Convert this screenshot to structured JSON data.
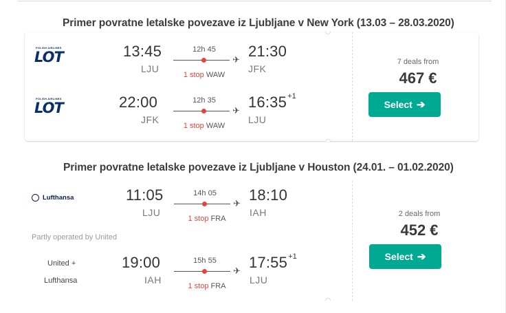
{
  "routes": [
    {
      "title": "Primer povratne letalske povezave iz Ljubljane v New York  (13.03 – 28.03.2020)",
      "deals": "7 deals from",
      "price": "467 €",
      "select_label": "Select",
      "legs": [
        {
          "airline_tag": "POLISH AIRLINES",
          "airline_logo": "LOT",
          "dep_time": "13:45",
          "dep_code": "LJU",
          "duration": "12h 45",
          "stop_count": "1 stop",
          "stop_airport": "WAW",
          "arr_time": "21:30",
          "arr_suffix": "",
          "arr_code": "JFK"
        },
        {
          "airline_tag": "POLISH AIRLINES",
          "airline_logo": "LOT",
          "dep_time": "22:00",
          "dep_code": "JFK",
          "duration": "12h 35",
          "stop_count": "1 stop",
          "stop_airport": "WAW",
          "arr_time": "16:35",
          "arr_suffix": "+1",
          "arr_code": "LJU"
        }
      ]
    },
    {
      "title": "Primer povratne letalske povezave iz Ljubljane v Houston (24.01. – 01.02.2020)",
      "deals": "2 deals from",
      "price": "452 €",
      "select_label": "Select",
      "operated_note": "Partly operated by United",
      "legs": [
        {
          "airline_logo": "Lufthansa",
          "dep_time": "11:05",
          "dep_code": "LJU",
          "duration": "14h 05",
          "stop_count": "1 stop",
          "stop_airport": "FRA",
          "arr_time": "18:10",
          "arr_suffix": "",
          "arr_code": "IAH"
        },
        {
          "carrier_line1": "United +",
          "carrier_line2": "Lufthansa",
          "dep_time": "19:00",
          "dep_code": "IAH",
          "duration": "15h 55",
          "stop_count": "1 stop",
          "stop_airport": "FRA",
          "arr_time": "17:55",
          "arr_suffix": "+1",
          "arr_code": "LJU"
        }
      ]
    }
  ],
  "icons": {
    "plane": "plane-icon",
    "arrow": "arrow-right-icon",
    "lufthansa_crane": "lufthansa-logo-icon"
  },
  "colors": {
    "accent": "#00a991",
    "stop_red": "#e2453c",
    "lot_blue": "#0a2f6b",
    "lufthansa_navy": "#0a1e4d"
  }
}
